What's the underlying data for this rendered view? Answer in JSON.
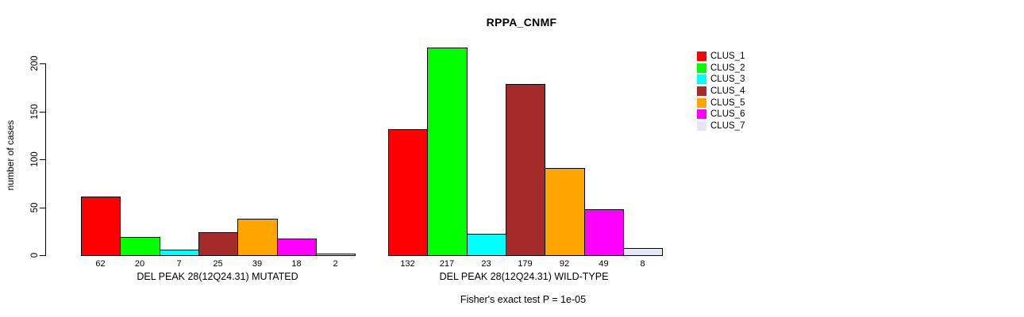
{
  "chart_data": {
    "type": "bar",
    "title": "RPPA_CNMF",
    "xlabel": "",
    "ylabel": "number of cases",
    "ylim": [
      0,
      217
    ],
    "yticks": [
      0,
      50,
      100,
      150,
      200
    ],
    "grid": false,
    "legend_position": "right",
    "bar_edge_color": "#000000",
    "categories": [
      "CLUS_1",
      "CLUS_2",
      "CLUS_3",
      "CLUS_4",
      "CLUS_5",
      "CLUS_6",
      "CLUS_7"
    ],
    "colors": [
      "#FF0000",
      "#00FF00",
      "#00FFFF",
      "#A52A2A",
      "#FFA500",
      "#FF00FF",
      "#E6E6FA"
    ],
    "groups": [
      {
        "label": "DEL PEAK 28(12Q24.31) MUTATED",
        "values": [
          62,
          20,
          7,
          25,
          39,
          18,
          2
        ]
      },
      {
        "label": "DEL PEAK 28(12Q24.31) WILD-TYPE",
        "values": [
          132,
          217,
          23,
          179,
          92,
          49,
          8
        ]
      }
    ],
    "annotation": "Fisher's exact test P = 1e-05"
  }
}
